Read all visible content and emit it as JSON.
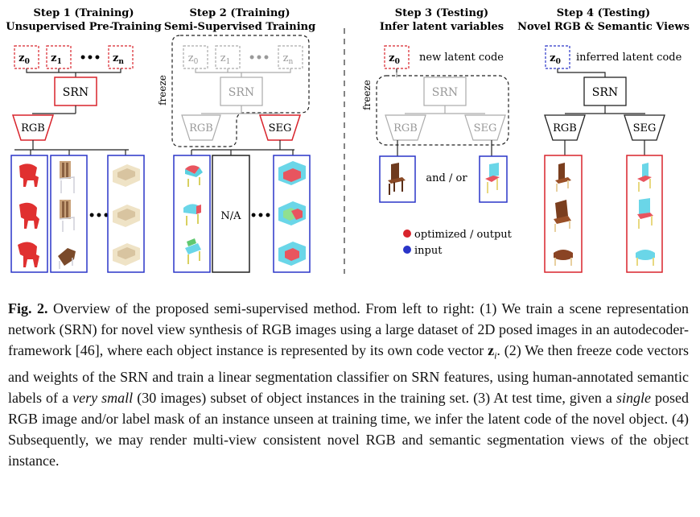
{
  "steps": [
    {
      "title": "Step 1 (Training)",
      "subtitle": "Unsupervised Pre-Training"
    },
    {
      "title": "Step 2 (Training)",
      "subtitle": "Semi-Supervised Training"
    },
    {
      "title": "Step 3 (Testing)",
      "subtitle": "Infer latent variables"
    },
    {
      "title": "Step 4 (Testing)",
      "subtitle": "Novel RGB & Semantic Views"
    }
  ],
  "codes": {
    "z0": "z",
    "z0_sub": "0",
    "z1": "z",
    "z1_sub": "1",
    "zn": "z",
    "zn_sub": "n",
    "dots": "•••"
  },
  "labels": {
    "srn": "SRN",
    "rgb": "RGB",
    "seg": "SEG",
    "freeze": "freeze",
    "na": "N/A",
    "and_or": "and / or",
    "new_latent": "new latent code",
    "inferred_latent": "inferred latent code"
  },
  "legend": {
    "optimized": "optimized / output",
    "input": "input"
  },
  "colors": {
    "optimized": "#d8242c",
    "input": "#2a35c8",
    "frozen": "#aaaaaa",
    "dark": "#222222"
  },
  "caption": {
    "fig_label": "Fig. 2.",
    "p1": " Overview of the proposed semi-supervised method. From left to right: (1) We train a scene representation network (SRN) for novel view synthesis of RGB images using a large dataset of 2D posed images in an autodecoder-framework [46], where each object instance is represented by its own code vector ",
    "zi": "z",
    "zi_sub": "i",
    "p2": ". (2) We then freeze code vectors and weights of the SRN and train a linear segmentation classifier on SRN features, using human-annotated semantic labels of a ",
    "em1": "very small",
    "p3": " (30 images) subset of object instances in the training set. (3) At test time, given a ",
    "em2": "single",
    "p4": " posed RGB image and/or label mask of an instance unseen at training time, we infer the latent code of the novel object. (4) Subsequently, we may render multi-view consistent novel RGB and semantic segmentation views of the object instance."
  }
}
